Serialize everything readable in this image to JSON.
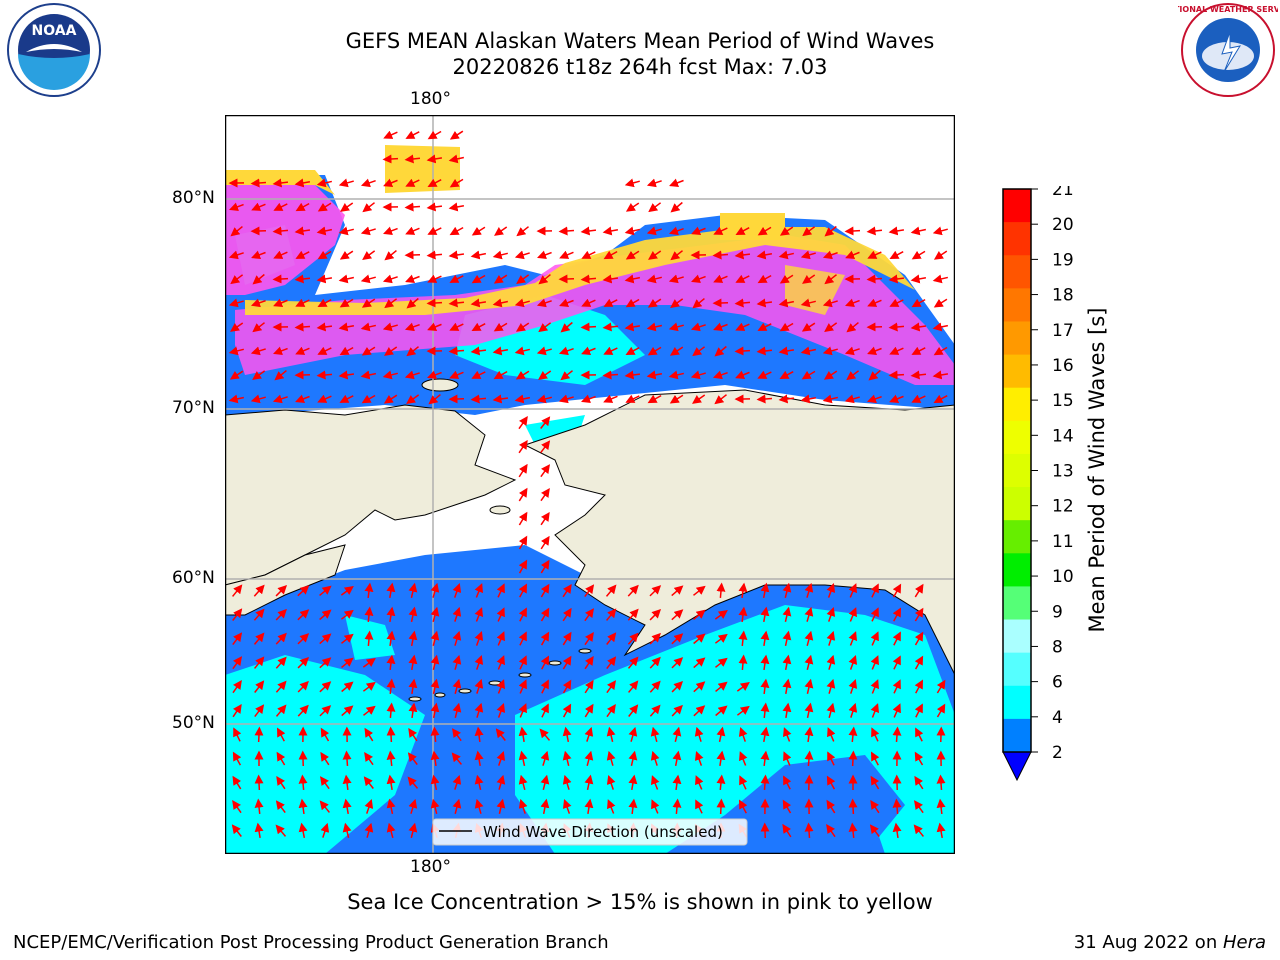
{
  "header": {
    "title_line1": "GEFS MEAN Alaskan Waters Mean Period of Wind Waves",
    "title_line2": "20220826 t18z 264h fcst   Max: 7.03"
  },
  "logos": {
    "left": "NOAA",
    "right": "NATIONAL WEATHER SERVICE"
  },
  "map": {
    "lon_label_top": "180°",
    "lon_label_bottom": "180°",
    "lat_labels": [
      "80°N",
      "70°N",
      "60°N",
      "50°N"
    ],
    "legend_label": "Wind Wave Direction (unscaled)",
    "colors": {
      "land": "#efeddb",
      "ocean_low": "#1e78ff",
      "ocean_mid": "#00ffff",
      "ice_pink": "#ff55ee",
      "ice_yellow": "#ffd83a",
      "arrow": "#ff0000"
    }
  },
  "colorbar": {
    "label": "Mean Period of Wind Waves [s]",
    "ticks": [
      "21",
      "20",
      "19",
      "18",
      "17",
      "16",
      "15",
      "14",
      "13",
      "12",
      "11",
      "10",
      "9",
      "8",
      "6",
      "4",
      "2"
    ],
    "colors": [
      "#ff0000",
      "#ff3300",
      "#ff5500",
      "#ff7700",
      "#ff9900",
      "#ffbb00",
      "#ffee00",
      "#eeff00",
      "#ddff00",
      "#ccff00",
      "#66ee00",
      "#00ee00",
      "#55ff77",
      "#aaffff",
      "#55ffff",
      "#00ffff",
      "#0080ff"
    ],
    "extend_color": "#0000ff"
  },
  "notes": {
    "sea_ice": "Sea Ice Concentration > 15% is shown in pink to yellow"
  },
  "footer": {
    "left": "NCEP/EMC/Verification Post Processing Product Generation Branch",
    "date": "31 Aug 2022 on ",
    "machine": "Hera"
  }
}
